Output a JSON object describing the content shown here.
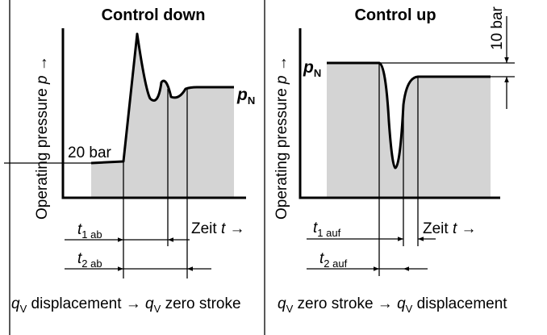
{
  "left": {
    "title": "Control down",
    "y_label": [
      "Operating pressure ",
      "p",
      " →"
    ],
    "pn": [
      "p",
      "N"
    ],
    "level": "20 bar",
    "t1": [
      "t",
      "1 ab"
    ],
    "t2": [
      "t",
      "2 ab"
    ],
    "time": [
      "Zeit ",
      "t",
      " →"
    ],
    "caption": [
      "q",
      "V",
      " displacement → ",
      "q",
      "V",
      " zero stroke"
    ]
  },
  "right": {
    "title": "Control up",
    "y_label": [
      "Operating pressure ",
      "p",
      " →"
    ],
    "pn": [
      "p",
      "N"
    ],
    "step": "10 bar",
    "t1": [
      "t",
      "1 auf"
    ],
    "t2": [
      "t",
      "2 auf"
    ],
    "time": [
      "Zeit ",
      "t",
      " →"
    ],
    "caption": [
      "q",
      "V",
      " zero stroke → ",
      "q",
      "V",
      " displacement"
    ]
  }
}
